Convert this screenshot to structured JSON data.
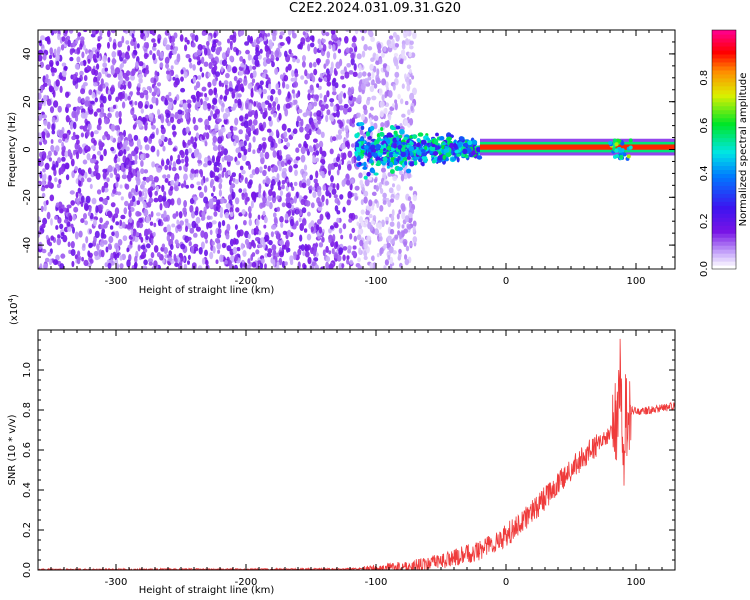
{
  "title": "C2E2.2024.031.09.31.G20",
  "chart_data": [
    {
      "type": "heatmap",
      "xlabel": "Height of straight line (km)",
      "ylabel": "Frequency (Hz)",
      "xlim": [
        -360,
        130
      ],
      "ylim": [
        -50,
        50
      ],
      "xticks": [
        "-300",
        "-200",
        "-100",
        "0",
        "100"
      ],
      "yticks": [
        "40",
        "20",
        "0",
        "-20",
        "-40"
      ],
      "colorbar": {
        "label": "Normalized spectral amplitude",
        "ticks": [
          "0.0",
          "0.2",
          "0.4",
          "0.6",
          "0.8"
        ],
        "range": [
          0,
          1
        ],
        "colormap": "rainbow (white-violet-blue-cyan-green-yellow-orange-red-magenta)"
      },
      "description_values": {
        "noise_region_x": [
          -360,
          -70
        ],
        "scatter_region_x": [
          -115,
          -20
        ],
        "signal_line_x": [
          -20,
          130
        ],
        "signal_line_freq": 1
      }
    },
    {
      "type": "line",
      "xlabel": "Height of straight line (km)",
      "ylabel": "SNR (10 * v/v)",
      "scale_label": "(x10",
      "scale_exp": "4",
      "scale_close": ")",
      "xlim": [
        -360,
        130
      ],
      "ylim": [
        0,
        1.2
      ],
      "xticks": [
        "-300",
        "-200",
        "-100",
        "0",
        "100"
      ],
      "yticks": [
        "0.0",
        "0.2",
        "0.4",
        "0.6",
        "0.8",
        "1.0"
      ],
      "color": "#ef3b3b",
      "series": [
        {
          "x": [
            -360,
            -300,
            -250,
            -200,
            -150,
            -120,
            -100,
            -80,
            -60,
            -40,
            -20,
            0,
            20,
            40,
            60,
            75,
            80,
            85,
            88,
            90,
            92,
            95,
            100,
            110,
            120,
            130
          ],
          "y": [
            0.002,
            0.002,
            0.003,
            0.003,
            0.004,
            0.005,
            0.008,
            0.015,
            0.03,
            0.06,
            0.1,
            0.17,
            0.29,
            0.43,
            0.57,
            0.65,
            0.68,
            0.72,
            0.95,
            0.55,
            0.78,
            0.8,
            0.79,
            0.8,
            0.81,
            0.82
          ]
        }
      ]
    }
  ]
}
